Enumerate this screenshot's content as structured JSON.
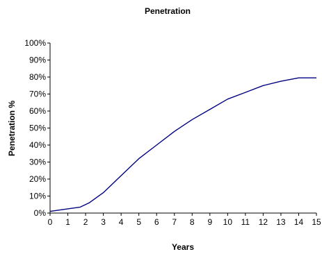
{
  "chart_data": {
    "type": "line",
    "title": "Penetration",
    "xlabel": "Years",
    "ylabel": "Penetration %",
    "xlim": [
      0,
      15
    ],
    "ylim": [
      0,
      100
    ],
    "x_ticks": [
      "0",
      "1",
      "2",
      "3",
      "4",
      "5",
      "6",
      "7",
      "8",
      "9",
      "10",
      "11",
      "12",
      "13",
      "14",
      "15"
    ],
    "y_ticks": [
      "0%",
      "10%",
      "20%",
      "30%",
      "40%",
      "50%",
      "60%",
      "70%",
      "80%",
      "90%",
      "100%"
    ],
    "grid": false,
    "legend": "none",
    "series": [
      {
        "color": "#000080",
        "x": [
          0,
          1,
          1.7,
          2.2,
          3,
          4,
          5,
          6,
          7,
          8,
          9,
          10,
          11,
          12,
          13,
          14,
          15
        ],
        "y": [
          1,
          2.5,
          3.5,
          6,
          12,
          22,
          32,
          40,
          48,
          55,
          61,
          67,
          71,
          75,
          77.5,
          79.5,
          79.5
        ]
      }
    ]
  }
}
